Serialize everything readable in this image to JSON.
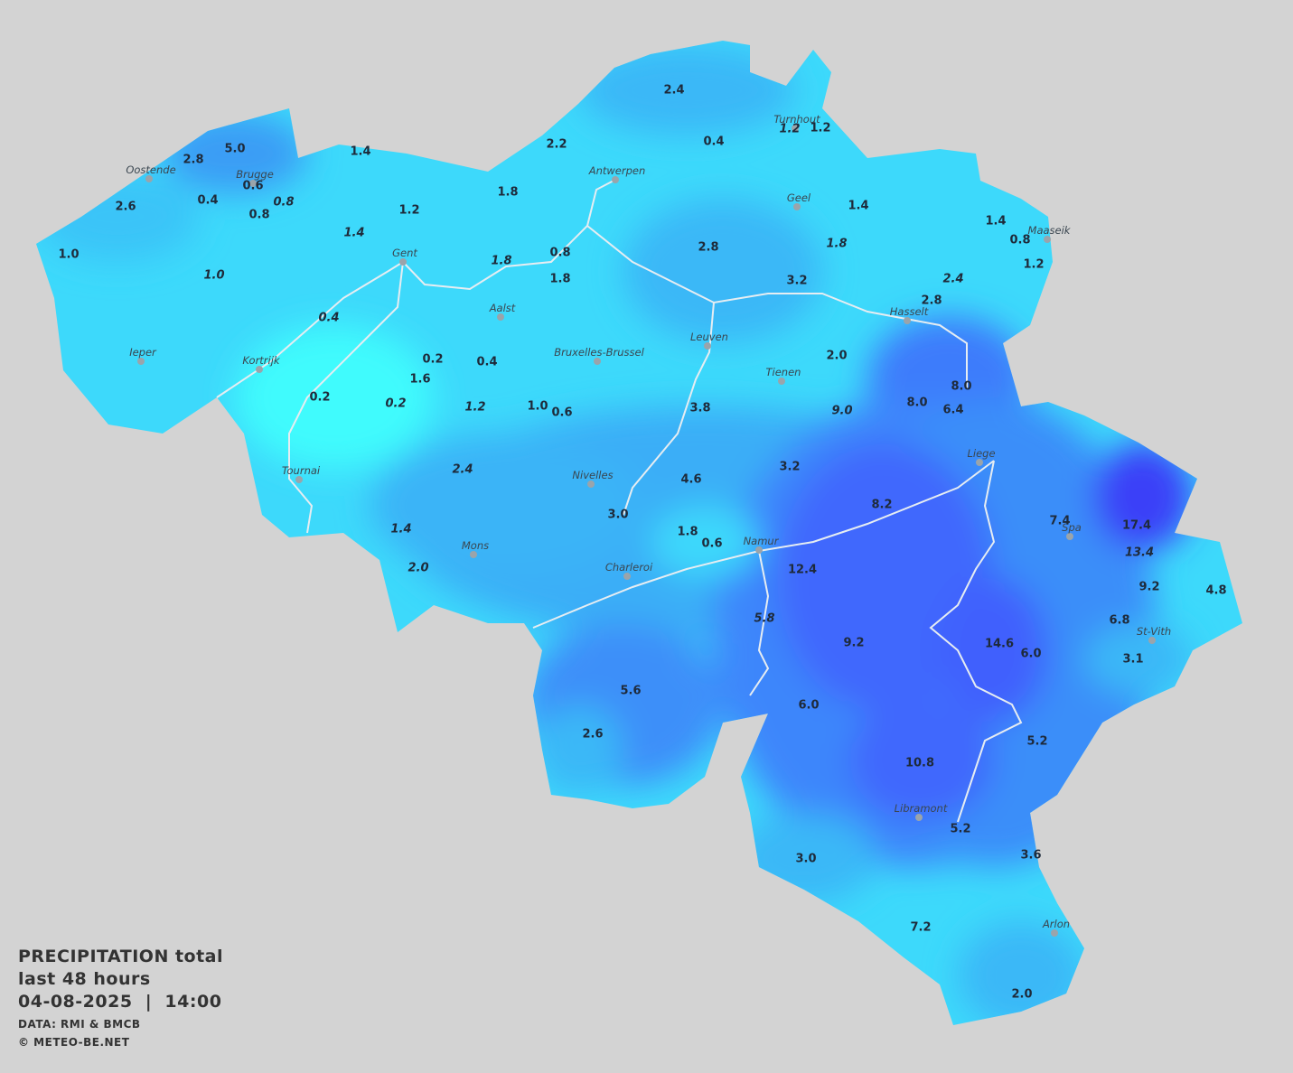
{
  "title": {
    "line1": "PRECIPITATION total",
    "line2": "last 48 hours",
    "line3": "04-08-2025  |  14:00"
  },
  "credits": {
    "data": "DATA: RMI & BMCB",
    "copyright": "© METEO-BE.NET"
  },
  "cities": [
    "Oostende",
    "Brugge",
    "Antwerpen",
    "Turnhout",
    "Geel",
    "Maaseik",
    "Gent",
    "Aalst",
    "Hasselt",
    "Leuven",
    "Ieper",
    "Kortrijk",
    "Bruxelles-Brussel",
    "Tienen",
    "Liege",
    "Tournai",
    "Nivelles",
    "Spa",
    "Mons",
    "Namur",
    "Charleroi",
    "St-Vith",
    "Libramont",
    "Arlon"
  ],
  "readings": [
    {
      "value": "2.4"
    },
    {
      "value": "0.4"
    },
    {
      "value": "1.2",
      "italic": true
    },
    {
      "value": "1.2"
    },
    {
      "value": "2.2"
    },
    {
      "value": "5.0"
    },
    {
      "value": "2.8"
    },
    {
      "value": "1.4"
    },
    {
      "value": "0.6"
    },
    {
      "value": "0.4"
    },
    {
      "value": "0.8",
      "italic": true
    },
    {
      "value": "0.8"
    },
    {
      "value": "2.6"
    },
    {
      "value": "1.8"
    },
    {
      "value": "1.2"
    },
    {
      "value": "1.4"
    },
    {
      "value": "1.4"
    },
    {
      "value": "0.8"
    },
    {
      "value": "1.2"
    },
    {
      "value": "1.0"
    },
    {
      "value": "1.4",
      "italic": true
    },
    {
      "value": "2.8"
    },
    {
      "value": "1.8",
      "italic": true
    },
    {
      "value": "0.8"
    },
    {
      "value": "1.8",
      "italic": true
    },
    {
      "value": "1.8"
    },
    {
      "value": "1.0",
      "italic": true
    },
    {
      "value": "3.2"
    },
    {
      "value": "2.4",
      "italic": true
    },
    {
      "value": "2.8"
    },
    {
      "value": "0.4",
      "italic": true
    },
    {
      "value": "2.0"
    },
    {
      "value": "0.2"
    },
    {
      "value": "0.4"
    },
    {
      "value": "1.6"
    },
    {
      "value": "8.0"
    },
    {
      "value": "0.2"
    },
    {
      "value": "0.2",
      "italic": true
    },
    {
      "value": "1.2",
      "italic": true
    },
    {
      "value": "1.0"
    },
    {
      "value": "0.6"
    },
    {
      "value": "3.8"
    },
    {
      "value": "9.0",
      "italic": true
    },
    {
      "value": "8.0"
    },
    {
      "value": "6.4"
    },
    {
      "value": "2.4",
      "italic": true
    },
    {
      "value": "4.6"
    },
    {
      "value": "3.2"
    },
    {
      "value": "3.0"
    },
    {
      "value": "8.2"
    },
    {
      "value": "1.4",
      "italic": true
    },
    {
      "value": "1.8"
    },
    {
      "value": "0.6"
    },
    {
      "value": "7.4"
    },
    {
      "value": "17.4"
    },
    {
      "value": "13.4",
      "italic": true
    },
    {
      "value": "2.0",
      "italic": true
    },
    {
      "value": "12.4"
    },
    {
      "value": "9.2"
    },
    {
      "value": "4.8"
    },
    {
      "value": "5.8",
      "italic": true
    },
    {
      "value": "6.8"
    },
    {
      "value": "9.2"
    },
    {
      "value": "14.6"
    },
    {
      "value": "6.0"
    },
    {
      "value": "3.1"
    },
    {
      "value": "5.6"
    },
    {
      "value": "6.0"
    },
    {
      "value": "2.6"
    },
    {
      "value": "5.2"
    },
    {
      "value": "10.8"
    },
    {
      "value": "5.2"
    },
    {
      "value": "3.6"
    },
    {
      "value": "3.0"
    },
    {
      "value": "7.2"
    },
    {
      "value": "2.0"
    }
  ]
}
